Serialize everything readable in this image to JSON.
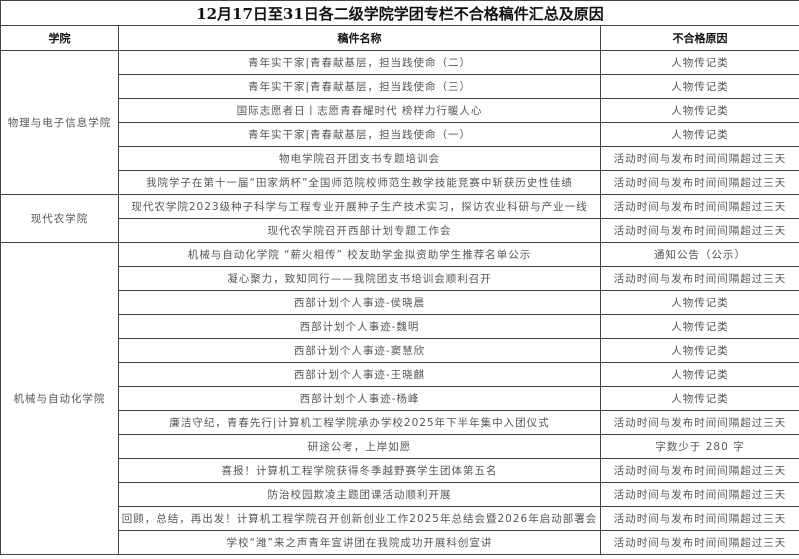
{
  "title": "12月17日至31日各二级学院学团专栏不合格稿件汇总及原因",
  "headers": {
    "college": "学院",
    "name": "稿件名称",
    "reason": "不合格原因"
  },
  "groups": [
    {
      "college": "物理与电子信息学院",
      "rows": [
        {
          "name": "青年实干家|青春献基层，担当践使命（二）",
          "reason": "人物传记类"
        },
        {
          "name": "青年实干家|青春献基层，担当践使命（三）",
          "reason": "人物传记类"
        },
        {
          "name": "国际志愿者日丨志愿青春耀时代 榜样力行暖人心",
          "reason": "人物传记类"
        },
        {
          "name": "青年实干家|青春献基层，担当践使命（一）",
          "reason": "人物传记类"
        },
        {
          "name": "物电学院召开团支书专题培训会",
          "reason": "活动时间与发布时间间隔超过三天"
        },
        {
          "name": "我院学子在第十一届“田家炳杯”全国师范院校师范生教学技能竞赛中斩获历史性佳绩",
          "reason": "活动时间与发布时间间隔超过三天"
        }
      ]
    },
    {
      "college": "现代农学院",
      "rows": [
        {
          "name": "现代农学院2023级种子科学与工程专业开展种子生产技术实习，探访农业科研与产业一线",
          "reason": "活动时间与发布时间间隔超过三天"
        },
        {
          "name": "现代农学院召开西部计划专题工作会",
          "reason": "活动时间与发布时间间隔超过三天"
        }
      ]
    },
    {
      "college": "机械与自动化学院",
      "rows": [
        {
          "name": "机械与自动化学院 “薪火相传” 校友助学金拟资助学生推荐名单公示",
          "reason": "通知公告（公示）"
        },
        {
          "name": "凝心聚力，致知同行——我院团支书培训会顺利召开",
          "reason": "活动时间与发布时间间隔超过三天"
        },
        {
          "name": "西部计划个人事迹-侯晓晨",
          "reason": "人物传记类"
        },
        {
          "name": "西部计划个人事迹-魏明",
          "reason": "人物传记类"
        },
        {
          "name": "西部计划个人事迹-窦慧欣",
          "reason": "人物传记类"
        },
        {
          "name": "西部计划个人事迹-王晓麒",
          "reason": "人物传记类"
        },
        {
          "name": "西部计划个人事迹-杨峰",
          "reason": "人物传记类"
        },
        {
          "name": "廉洁守纪，青春先行|计算机工程学院承办学校2025年下半年集中入团仪式",
          "reason": "活动时间与发布时间间隔超过三天"
        },
        {
          "name": "研途公考，上岸如愿",
          "reason": "字数少于 280 字"
        },
        {
          "name": "喜报！计算机工程学院获得冬季越野赛学生团体第五名",
          "reason": "活动时间与发布时间间隔超过三天"
        },
        {
          "name": "防治校园欺凌主题团课活动顺利开展",
          "reason": "活动时间与发布时间间隔超过三天"
        },
        {
          "name": "回顾，总结，再出发！计算机工程学院召开创新创业工作2025年总结会暨2026年启动部署会",
          "reason": "活动时间与发布时间间隔超过三天"
        },
        {
          "name": "学校“潍”来之声青年宣讲团在我院成功开展科创宣讲",
          "reason": "活动时间与发布时间间隔超过三天"
        }
      ]
    }
  ]
}
